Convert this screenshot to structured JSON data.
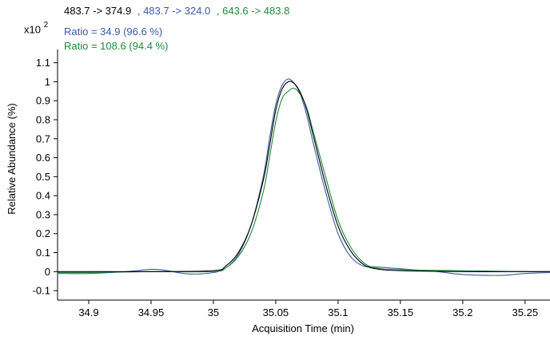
{
  "legend": {
    "entries": [
      {
        "label": "483.7 -> 374.9",
        "color": "#000000"
      },
      {
        "label": ", 483.7 -> 324.0",
        "color": "#3a5aa8"
      },
      {
        "label": ", 643.6 -> 483.8",
        "color": "#1f8a3c"
      }
    ]
  },
  "exponent": {
    "base": "x10",
    "power": "2"
  },
  "ratios": [
    {
      "text": "Ratio = 34.9 (96.6 %)",
      "color": "#3a5aa8"
    },
    {
      "text": "Ratio = 108.6 (94.4 %)",
      "color": "#1f8a3c"
    }
  ],
  "chart_data": {
    "type": "line",
    "xlabel": "Acquisition Time (min)",
    "ylabel": "Relative Abundance (%)",
    "xlim": [
      34.875,
      35.27
    ],
    "ylim": [
      -0.15,
      1.17
    ],
    "xticks": [
      34.9,
      34.95,
      35,
      35.05,
      35.1,
      35.15,
      35.2,
      35.25
    ],
    "xtick_labels": [
      "34.9",
      "34.95",
      "35",
      "35.05",
      "35.1",
      "35.15",
      "35.2",
      "35.25"
    ],
    "yticks": [
      -0.1,
      0,
      0.1,
      0.2,
      0.3,
      0.4,
      0.5,
      0.6,
      0.7,
      0.8,
      0.9,
      1,
      1.1
    ],
    "ytick_labels": [
      "-0.1",
      "0",
      "0.1",
      "0.2",
      "0.3",
      "0.4",
      "0.5",
      "0.6",
      "0.7",
      "0.8",
      "0.9",
      "1",
      "1.1"
    ],
    "grid": false,
    "series": [
      {
        "name": "483.7 -> 374.9",
        "color": "#000000",
        "x": [
          34.875,
          34.9,
          34.95,
          35.0,
          35.01,
          35.02,
          35.03,
          35.04,
          35.045,
          35.05,
          35.055,
          35.06,
          35.065,
          35.07,
          35.075,
          35.08,
          35.09,
          35.1,
          35.11,
          35.12,
          35.13,
          35.15,
          35.2,
          35.25,
          35.27
        ],
        "y": [
          0,
          0,
          0,
          0.005,
          0.03,
          0.1,
          0.24,
          0.48,
          0.66,
          0.85,
          0.96,
          1.0,
          0.99,
          0.94,
          0.85,
          0.72,
          0.46,
          0.24,
          0.11,
          0.04,
          0.015,
          0.005,
          0.0,
          0.0,
          0.0
        ]
      },
      {
        "name": "483.7 -> 324.0",
        "color": "#3a5aa8",
        "x": [
          34.875,
          34.9,
          34.93,
          34.95,
          34.96,
          34.98,
          35.0,
          35.01,
          35.02,
          35.03,
          35.04,
          35.045,
          35.05,
          35.055,
          35.06,
          35.065,
          35.07,
          35.075,
          35.08,
          35.09,
          35.1,
          35.11,
          35.12,
          35.13,
          35.14,
          35.16,
          35.18,
          35.2,
          35.23,
          35.25,
          35.27
        ],
        "y": [
          -0.01,
          -0.01,
          0.0,
          0.012,
          0.008,
          -0.012,
          -0.005,
          0.02,
          0.09,
          0.24,
          0.5,
          0.7,
          0.88,
          0.98,
          1.015,
          0.99,
          0.93,
          0.82,
          0.68,
          0.42,
          0.2,
          0.08,
          0.03,
          0.025,
          0.02,
          0.01,
          0.0,
          -0.015,
          -0.02,
          -0.01,
          -0.005
        ]
      },
      {
        "name": "643.6 -> 483.8",
        "color": "#1f8a3c",
        "x": [
          34.875,
          34.9,
          34.95,
          35.0,
          35.01,
          35.02,
          35.03,
          35.04,
          35.045,
          35.05,
          35.055,
          35.06,
          35.065,
          35.07,
          35.075,
          35.08,
          35.09,
          35.1,
          35.11,
          35.12,
          35.13,
          35.15,
          35.2,
          35.25,
          35.27
        ],
        "y": [
          -0.005,
          -0.005,
          0.0,
          0.0,
          0.02,
          0.08,
          0.2,
          0.42,
          0.6,
          0.79,
          0.91,
          0.95,
          0.965,
          0.93,
          0.86,
          0.74,
          0.5,
          0.27,
          0.13,
          0.05,
          0.02,
          0.01,
          0.005,
          0.0,
          0.0
        ]
      }
    ]
  }
}
